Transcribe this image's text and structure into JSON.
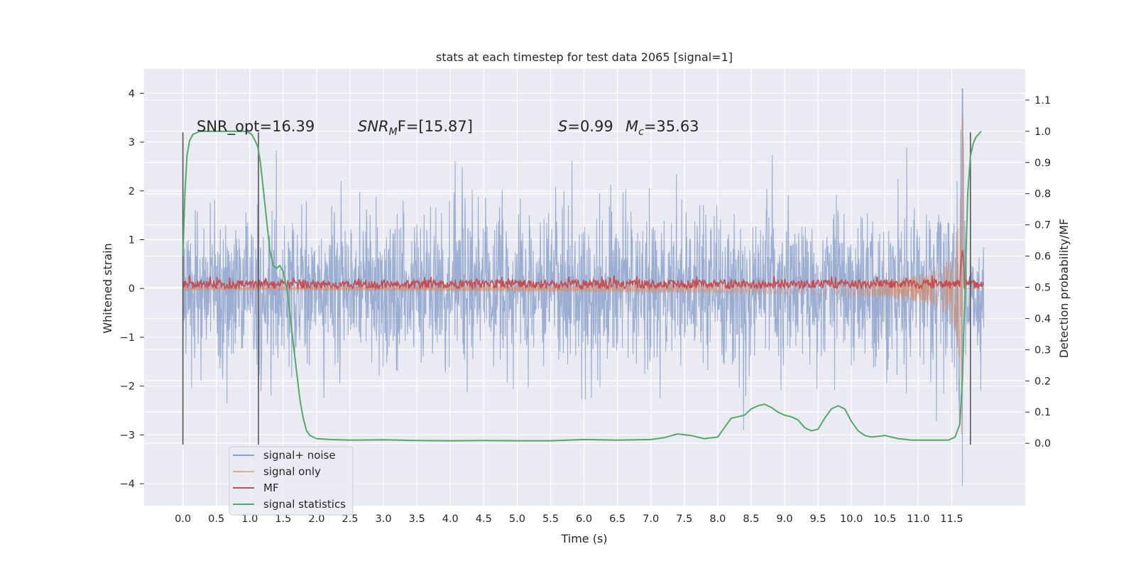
{
  "chart_data": {
    "type": "line",
    "title": "stats at each timestep for test data 2065 [signal=1]",
    "xlabel": "Time (s)",
    "ylabel": "Whitened strain",
    "ylabel_right": "Detection probability/MF",
    "xlim": [
      -0.58,
      12.6
    ],
    "ylim": [
      -4.45,
      4.5
    ],
    "ylim_right": [
      -0.2,
      1.2
    ],
    "x_ticks": [
      "0.0",
      "0.5",
      "1.0",
      "1.5",
      "2.0",
      "2.5",
      "3.0",
      "3.5",
      "4.0",
      "4.5",
      "5.0",
      "5.5",
      "6.0",
      "6.5",
      "7.0",
      "7.5",
      "8.0",
      "8.5",
      "9.0",
      "9.5",
      "10.0",
      "10.5",
      "11.0",
      "11.5"
    ],
    "y_ticks": [
      "4",
      "3",
      "2",
      "1",
      "0",
      "−1",
      "−2",
      "−3",
      "−4"
    ],
    "y_ticks_right": [
      "1.1",
      "1.0",
      "0.9",
      "0.8",
      "0.7",
      "0.6",
      "0.5",
      "0.4",
      "0.3",
      "0.2",
      "0.1",
      "0.0"
    ],
    "grid": true,
    "legend_position": "lower-left",
    "colors": {
      "background": "#eaeaf2",
      "grid": "#ffffff",
      "signal_noise": "#4c72b0",
      "signal_only": "#dd8452",
      "mf": "#c44e52",
      "statistics": "#55a868",
      "marker": "#555555"
    },
    "annotations": {
      "snr_opt": "SNR_opt=16.39",
      "snr_mf": "SNR",
      "snr_mf_sub": "M",
      "snr_mf_rest": "F=[15.87]",
      "s_label": "S",
      "s_value": "=0.99",
      "mc_label": "M",
      "mc_sub": "c",
      "mc_value": "=35.63"
    },
    "vertical_markers": [
      0.0,
      1.13,
      11.78
    ],
    "series": [
      {
        "name": "signal+ noise",
        "axis": "left",
        "description_values": "noise band roughly between -2 and 2, spikes to about 3.4; chirp near 11.65 s reaching 4.1 and -4.05",
        "x_range": [
          0.0,
          11.98
        ],
        "band": [
          -1.9,
          1.9
        ]
      },
      {
        "name": "signal only",
        "axis": "left",
        "x_range": [
          0.0,
          11.98
        ],
        "peak": {
          "x": 11.66,
          "max": 3.55,
          "min": -2.9
        }
      },
      {
        "name": "MF",
        "axis": "right",
        "x_range": [
          0.0,
          11.98
        ],
        "baseline": 0.51,
        "peak": {
          "x": 11.66,
          "value": 0.62
        }
      },
      {
        "name": "signal statistics",
        "axis": "right",
        "x": [
          0.0,
          0.03,
          0.06,
          0.1,
          0.15,
          0.25,
          0.4,
          0.6,
          0.8,
          0.95,
          1.03,
          1.08,
          1.12,
          1.16,
          1.2,
          1.25,
          1.3,
          1.35,
          1.4,
          1.45,
          1.5,
          1.55,
          1.6,
          1.65,
          1.7,
          1.75,
          1.8,
          1.85,
          1.9,
          2.0,
          2.2,
          2.5,
          3.0,
          3.5,
          4.0,
          4.5,
          5.0,
          5.5,
          6.0,
          6.5,
          7.0,
          7.2,
          7.4,
          7.6,
          7.8,
          8.0,
          8.1,
          8.2,
          8.3,
          8.4,
          8.5,
          8.6,
          8.7,
          8.8,
          8.9,
          9.0,
          9.1,
          9.2,
          9.3,
          9.4,
          9.5,
          9.6,
          9.7,
          9.8,
          9.9,
          10.0,
          10.1,
          10.2,
          10.3,
          10.5,
          10.7,
          10.9,
          11.1,
          11.3,
          11.45,
          11.55,
          11.62,
          11.66,
          11.7,
          11.74,
          11.78,
          11.82,
          11.86,
          11.9,
          11.94
        ],
        "values": [
          0.6,
          0.8,
          0.92,
          0.97,
          0.99,
          1.0,
          1.0,
          1.0,
          1.0,
          1.0,
          0.99,
          0.97,
          0.95,
          0.9,
          0.82,
          0.72,
          0.62,
          0.57,
          0.56,
          0.57,
          0.55,
          0.5,
          0.42,
          0.32,
          0.23,
          0.14,
          0.08,
          0.04,
          0.025,
          0.015,
          0.012,
          0.01,
          0.011,
          0.009,
          0.008,
          0.009,
          0.008,
          0.008,
          0.012,
          0.01,
          0.012,
          0.018,
          0.03,
          0.025,
          0.015,
          0.02,
          0.05,
          0.08,
          0.085,
          0.09,
          0.11,
          0.12,
          0.125,
          0.115,
          0.1,
          0.09,
          0.085,
          0.075,
          0.05,
          0.04,
          0.045,
          0.08,
          0.11,
          0.12,
          0.11,
          0.07,
          0.04,
          0.025,
          0.02,
          0.025,
          0.015,
          0.01,
          0.01,
          0.01,
          0.01,
          0.02,
          0.06,
          0.2,
          0.5,
          0.8,
          0.92,
          0.96,
          0.98,
          0.99,
          1.0
        ]
      }
    ],
    "legend": [
      "signal+ noise",
      "signal only",
      "MF",
      "signal statistics"
    ]
  }
}
